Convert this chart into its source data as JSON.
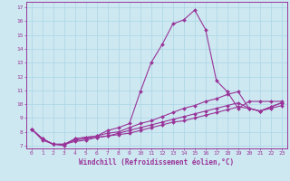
{
  "xlabel": "Windchill (Refroidissement éolien,°C)",
  "bg_color": "#cde8f0",
  "line_color": "#993399",
  "grid_color": "#b0d8e8",
  "xlim": [
    -0.5,
    23.5
  ],
  "ylim": [
    6.8,
    17.4
  ],
  "yticks": [
    7,
    8,
    9,
    10,
    11,
    12,
    13,
    14,
    15,
    16,
    17
  ],
  "xticks": [
    0,
    1,
    2,
    3,
    4,
    5,
    6,
    7,
    8,
    9,
    10,
    11,
    12,
    13,
    14,
    15,
    16,
    17,
    18,
    19,
    20,
    21,
    22,
    23
  ],
  "series": [
    [
      8.2,
      7.4,
      7.1,
      7.0,
      7.5,
      7.6,
      7.7,
      8.1,
      8.3,
      8.6,
      10.9,
      13.0,
      14.3,
      15.8,
      16.1,
      16.8,
      15.4,
      11.7,
      10.9,
      9.7,
      10.2,
      10.2,
      10.2,
      10.2
    ],
    [
      8.2,
      7.5,
      7.1,
      7.1,
      7.5,
      7.6,
      7.7,
      7.9,
      8.0,
      8.3,
      8.6,
      8.8,
      9.1,
      9.4,
      9.7,
      9.9,
      10.2,
      10.4,
      10.7,
      10.9,
      9.7,
      9.5,
      9.8,
      10.1
    ],
    [
      8.2,
      7.5,
      7.1,
      7.1,
      7.4,
      7.5,
      7.6,
      7.7,
      7.9,
      8.1,
      8.3,
      8.5,
      8.7,
      8.9,
      9.1,
      9.3,
      9.5,
      9.7,
      9.9,
      10.1,
      9.7,
      9.5,
      9.8,
      10.1
    ],
    [
      8.2,
      7.5,
      7.1,
      7.1,
      7.3,
      7.4,
      7.6,
      7.7,
      7.8,
      7.9,
      8.1,
      8.3,
      8.5,
      8.7,
      8.8,
      9.0,
      9.2,
      9.4,
      9.6,
      9.8,
      9.7,
      9.5,
      9.7,
      9.9
    ]
  ],
  "marker": "D",
  "markersize": 2.0,
  "linewidth": 0.8
}
